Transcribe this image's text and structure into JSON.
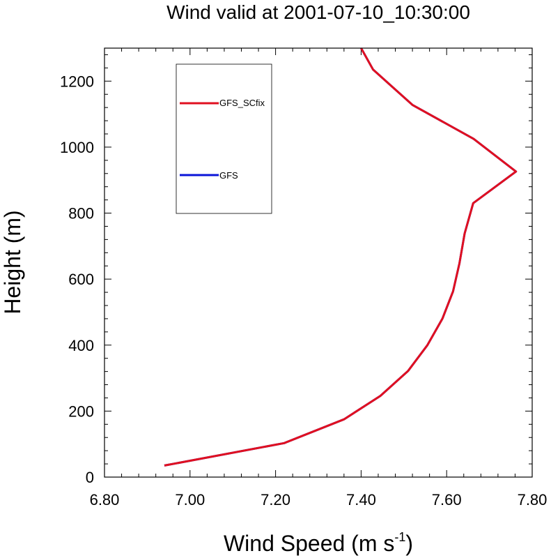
{
  "chart_data": {
    "type": "line",
    "title": "Wind valid at 2001-07-10_10:30:00",
    "xlabel": "Wind Speed (m s",
    "xlabel_superscript": "-1",
    "xlabel_suffix": ")",
    "ylabel": "Height (m)",
    "xlim": [
      6.8,
      7.8
    ],
    "ylim": [
      0,
      1300
    ],
    "x_ticks": [
      "6.80",
      "7.00",
      "7.20",
      "7.40",
      "7.60",
      "7.80"
    ],
    "y_ticks": [
      "0",
      "200",
      "400",
      "600",
      "800",
      "1000",
      "1200"
    ],
    "legend_placement": "top-left",
    "series": [
      {
        "name": "GFS_SCfix",
        "color": "#e01020",
        "points": [
          {
            "x": 6.94,
            "y": 35
          },
          {
            "x": 7.22,
            "y": 103
          },
          {
            "x": 7.36,
            "y": 175
          },
          {
            "x": 7.445,
            "y": 246
          },
          {
            "x": 7.51,
            "y": 322
          },
          {
            "x": 7.555,
            "y": 400
          },
          {
            "x": 7.59,
            "y": 480
          },
          {
            "x": 7.615,
            "y": 563
          },
          {
            "x": 7.63,
            "y": 648
          },
          {
            "x": 7.642,
            "y": 738
          },
          {
            "x": 7.662,
            "y": 830
          },
          {
            "x": 7.762,
            "y": 926
          },
          {
            "x": 7.663,
            "y": 1025
          },
          {
            "x": 7.52,
            "y": 1128
          },
          {
            "x": 7.428,
            "y": 1235
          },
          {
            "x": 7.4,
            "y": 1300
          }
        ]
      },
      {
        "name": "GFS",
        "color": "#0a14d8",
        "points": [
          {
            "x": 6.94,
            "y": 35
          },
          {
            "x": 7.22,
            "y": 103
          },
          {
            "x": 7.36,
            "y": 175
          },
          {
            "x": 7.445,
            "y": 246
          },
          {
            "x": 7.51,
            "y": 322
          },
          {
            "x": 7.555,
            "y": 400
          },
          {
            "x": 7.59,
            "y": 480
          },
          {
            "x": 7.615,
            "y": 563
          },
          {
            "x": 7.63,
            "y": 648
          },
          {
            "x": 7.642,
            "y": 738
          },
          {
            "x": 7.662,
            "y": 830
          },
          {
            "x": 7.762,
            "y": 926
          },
          {
            "x": 7.663,
            "y": 1025
          },
          {
            "x": 7.52,
            "y": 1128
          },
          {
            "x": 7.428,
            "y": 1235
          },
          {
            "x": 7.4,
            "y": 1300
          }
        ]
      }
    ]
  }
}
